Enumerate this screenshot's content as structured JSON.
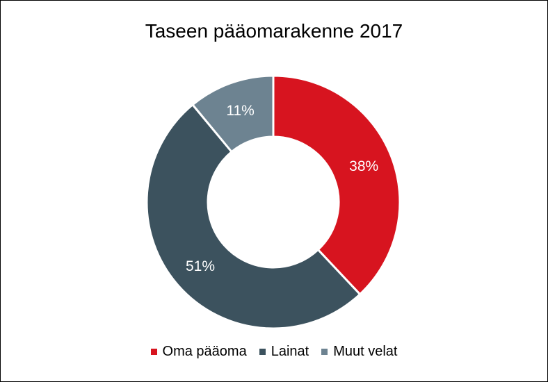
{
  "chart_data": {
    "type": "pie",
    "variant": "donut",
    "title": "Taseen pääomarakenne 2017",
    "categories": [
      "Oma pääoma",
      "Lainat",
      "Muut velat"
    ],
    "values": [
      38,
      51,
      11
    ],
    "labels": [
      "38%",
      "51%",
      "11%"
    ],
    "colors": [
      "#d7141f",
      "#3c525e",
      "#6d8391"
    ],
    "label_color": "#ffffff",
    "legend_position": "bottom"
  }
}
